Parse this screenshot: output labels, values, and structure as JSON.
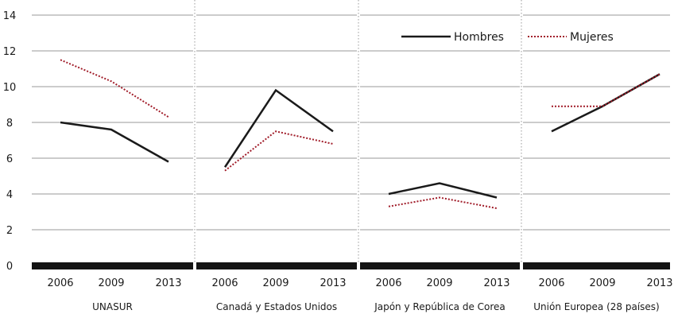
{
  "chart_data": {
    "type": "line",
    "panels": [
      {
        "label": "UNASUR",
        "categories": [
          "2006",
          "2009",
          "2013"
        ],
        "series": [
          {
            "name": "Hombres",
            "values": [
              8.0,
              7.6,
              5.8
            ]
          },
          {
            "name": "Mujeres",
            "values": [
              11.5,
              10.3,
              8.3
            ]
          }
        ]
      },
      {
        "label": "Canadá y Estados Unidos",
        "categories": [
          "2006",
          "2009",
          "2013"
        ],
        "series": [
          {
            "name": "Hombres",
            "values": [
              5.5,
              9.8,
              7.5
            ]
          },
          {
            "name": "Mujeres",
            "values": [
              5.3,
              7.5,
              6.8
            ]
          }
        ]
      },
      {
        "label": "Japón y República de Corea",
        "categories": [
          "2006",
          "2009",
          "2013"
        ],
        "series": [
          {
            "name": "Hombres",
            "values": [
              4.0,
              4.6,
              3.8
            ]
          },
          {
            "name": "Mujeres",
            "values": [
              3.3,
              3.8,
              3.2
            ]
          }
        ]
      },
      {
        "label": "Unión Europea (28 países)",
        "categories": [
          "2006",
          "2009",
          "2013"
        ],
        "series": [
          {
            "name": "Hombres",
            "values": [
              7.5,
              8.9,
              10.7
            ]
          },
          {
            "name": "Mujeres",
            "values": [
              8.9,
              8.9,
              10.7
            ]
          }
        ]
      }
    ],
    "ylim": [
      0,
      14
    ],
    "yticks": [
      "0",
      "2",
      "4",
      "6",
      "8",
      "10",
      "12",
      "14"
    ],
    "grid": true,
    "legend": {
      "placement": "top-right",
      "entries": [
        {
          "name": "Hombres",
          "color": "#1a1a1a",
          "style": "solid"
        },
        {
          "name": "Mujeres",
          "color": "#a11d2a",
          "style": "dotted"
        }
      ]
    },
    "colors": {
      "Hombres": "#1a1a1a",
      "Mujeres": "#a11d2a"
    }
  }
}
